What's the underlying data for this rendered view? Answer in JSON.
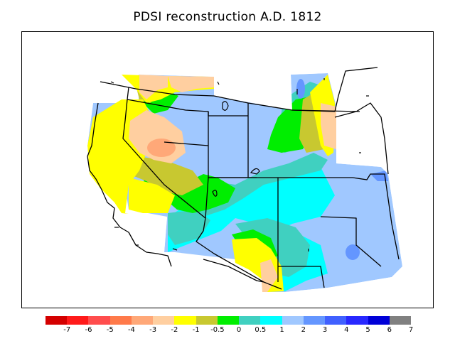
{
  "title": "PDSI reconstruction A.D. 1812",
  "legend": {
    "colors": [
      "#d40000",
      "#ff1a1a",
      "#ff4d4d",
      "#ff7a4a",
      "#ffa878",
      "#ffcfa0",
      "#ffff00",
      "#c8c830",
      "#00ee00",
      "#40d0c0",
      "#00ffff",
      "#a0c8ff",
      "#6496ff",
      "#4060ff",
      "#2828ff",
      "#0000d8",
      "#808080"
    ],
    "labels": [
      "-7",
      "-6",
      "-5",
      "-4",
      "-3",
      "-2",
      "-1",
      "-0.5",
      "0",
      "0.5",
      "1",
      "2",
      "3",
      "4",
      "5",
      "6",
      "7"
    ]
  }
}
